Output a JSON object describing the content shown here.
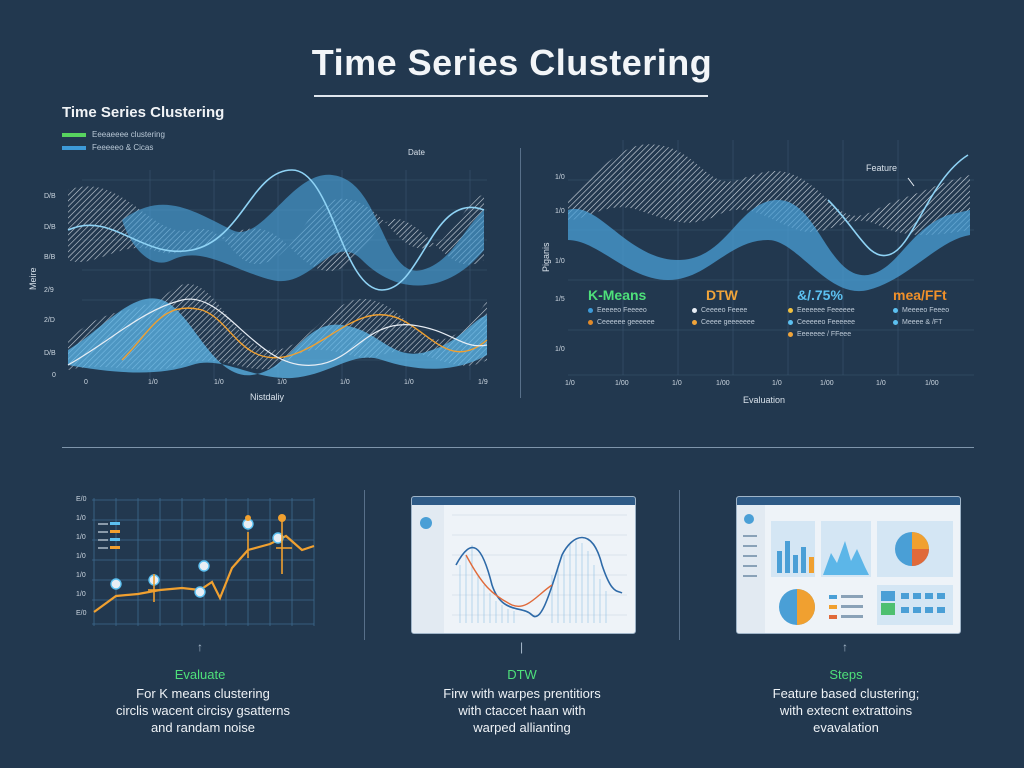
{
  "header": {
    "title": "Time Series Clustering"
  },
  "left_chart": {
    "title": "Time Series Clustering",
    "legend": [
      {
        "label": "Eeeaeeee clustering",
        "color": "#57d35f"
      },
      {
        "label": "Feeeeeo & Cicas",
        "color": "#3d9ad8"
      }
    ],
    "top_label": "Date",
    "y_label": "Meire",
    "x_label": "Nistdaliy",
    "y_ticks": [
      "D/B",
      "D/B",
      "B/B",
      "2/9",
      "2/D",
      "D/B",
      "0"
    ],
    "x_ticks": [
      "0",
      "1/0",
      "1/0",
      "1/0",
      "1/0",
      "1/0",
      "1/9"
    ]
  },
  "right_chart": {
    "annotation": "Feature",
    "y_label": "Piganis",
    "x_label": "Evaluation",
    "y_ticks": [
      "1/0",
      "1/0",
      "1/0",
      "1/5",
      "1/0"
    ],
    "x_ticks": [
      "1/0",
      "1/00",
      "1/0",
      "1/00",
      "1/0",
      "1/00",
      "1/0",
      "1/00"
    ],
    "methods": [
      {
        "name": "K-Means",
        "color": "#4ee07a",
        "items": [
          {
            "label": "Eeeeeo Feeeeo",
            "color": "#3d9ad8"
          },
          {
            "label": "Ceeeeee geeeeee",
            "color": "#e08a2a"
          }
        ]
      },
      {
        "name": "DTW",
        "color": "#f0a43a",
        "items": [
          {
            "label": "Ceeeeo Feeee",
            "color": "#e8eef5"
          },
          {
            "label": "Ceeee geeeeeee",
            "color": "#f0a43a"
          }
        ]
      },
      {
        "name": "&/.75%",
        "color": "#5cc0f0",
        "items": [
          {
            "label": "Eeeeeee Feeeeee",
            "color": "#f0c040"
          },
          {
            "label": "Ceeeeeo Feeeeee",
            "color": "#5cc0f0"
          },
          {
            "label": "Eeeeeee / FFeee",
            "color": "#f0a43a"
          }
        ]
      },
      {
        "name": "mea/FFt",
        "color": "#f0902a",
        "items": [
          {
            "label": "Meeeeo Feeeo",
            "color": "#5cc0f0"
          },
          {
            "label": "Meeee & /FT",
            "color": "#5cc0f0"
          }
        ]
      }
    ]
  },
  "bottom_panels": [
    {
      "heading": "Evaluate",
      "heading_color": "#4ee07a",
      "body": [
        "For K means clustering",
        "circlis wacent circisy gsatterns",
        "and randam noise"
      ]
    },
    {
      "heading": "DTW",
      "heading_color": "#4ee07a",
      "body": [
        "Firw with warpes prentitiors",
        "with ctaccet haan with",
        "warped allianting"
      ]
    },
    {
      "heading": "Steps",
      "heading_color": "#4ee07a",
      "body": [
        "Feature based clustering;",
        "with extecnt extrattoins",
        "evavalation"
      ]
    }
  ],
  "panel1_ticks": [
    "E/0",
    "1/0",
    "1/0",
    "1/0",
    "1/0",
    "1/0",
    "E/0"
  ],
  "colors": {
    "background": "#22384f",
    "wave_light": "#e8eef5",
    "wave_blue": "#4a9fd6",
    "accent_orange": "#f0a030",
    "accent_green": "#4ee07a"
  }
}
